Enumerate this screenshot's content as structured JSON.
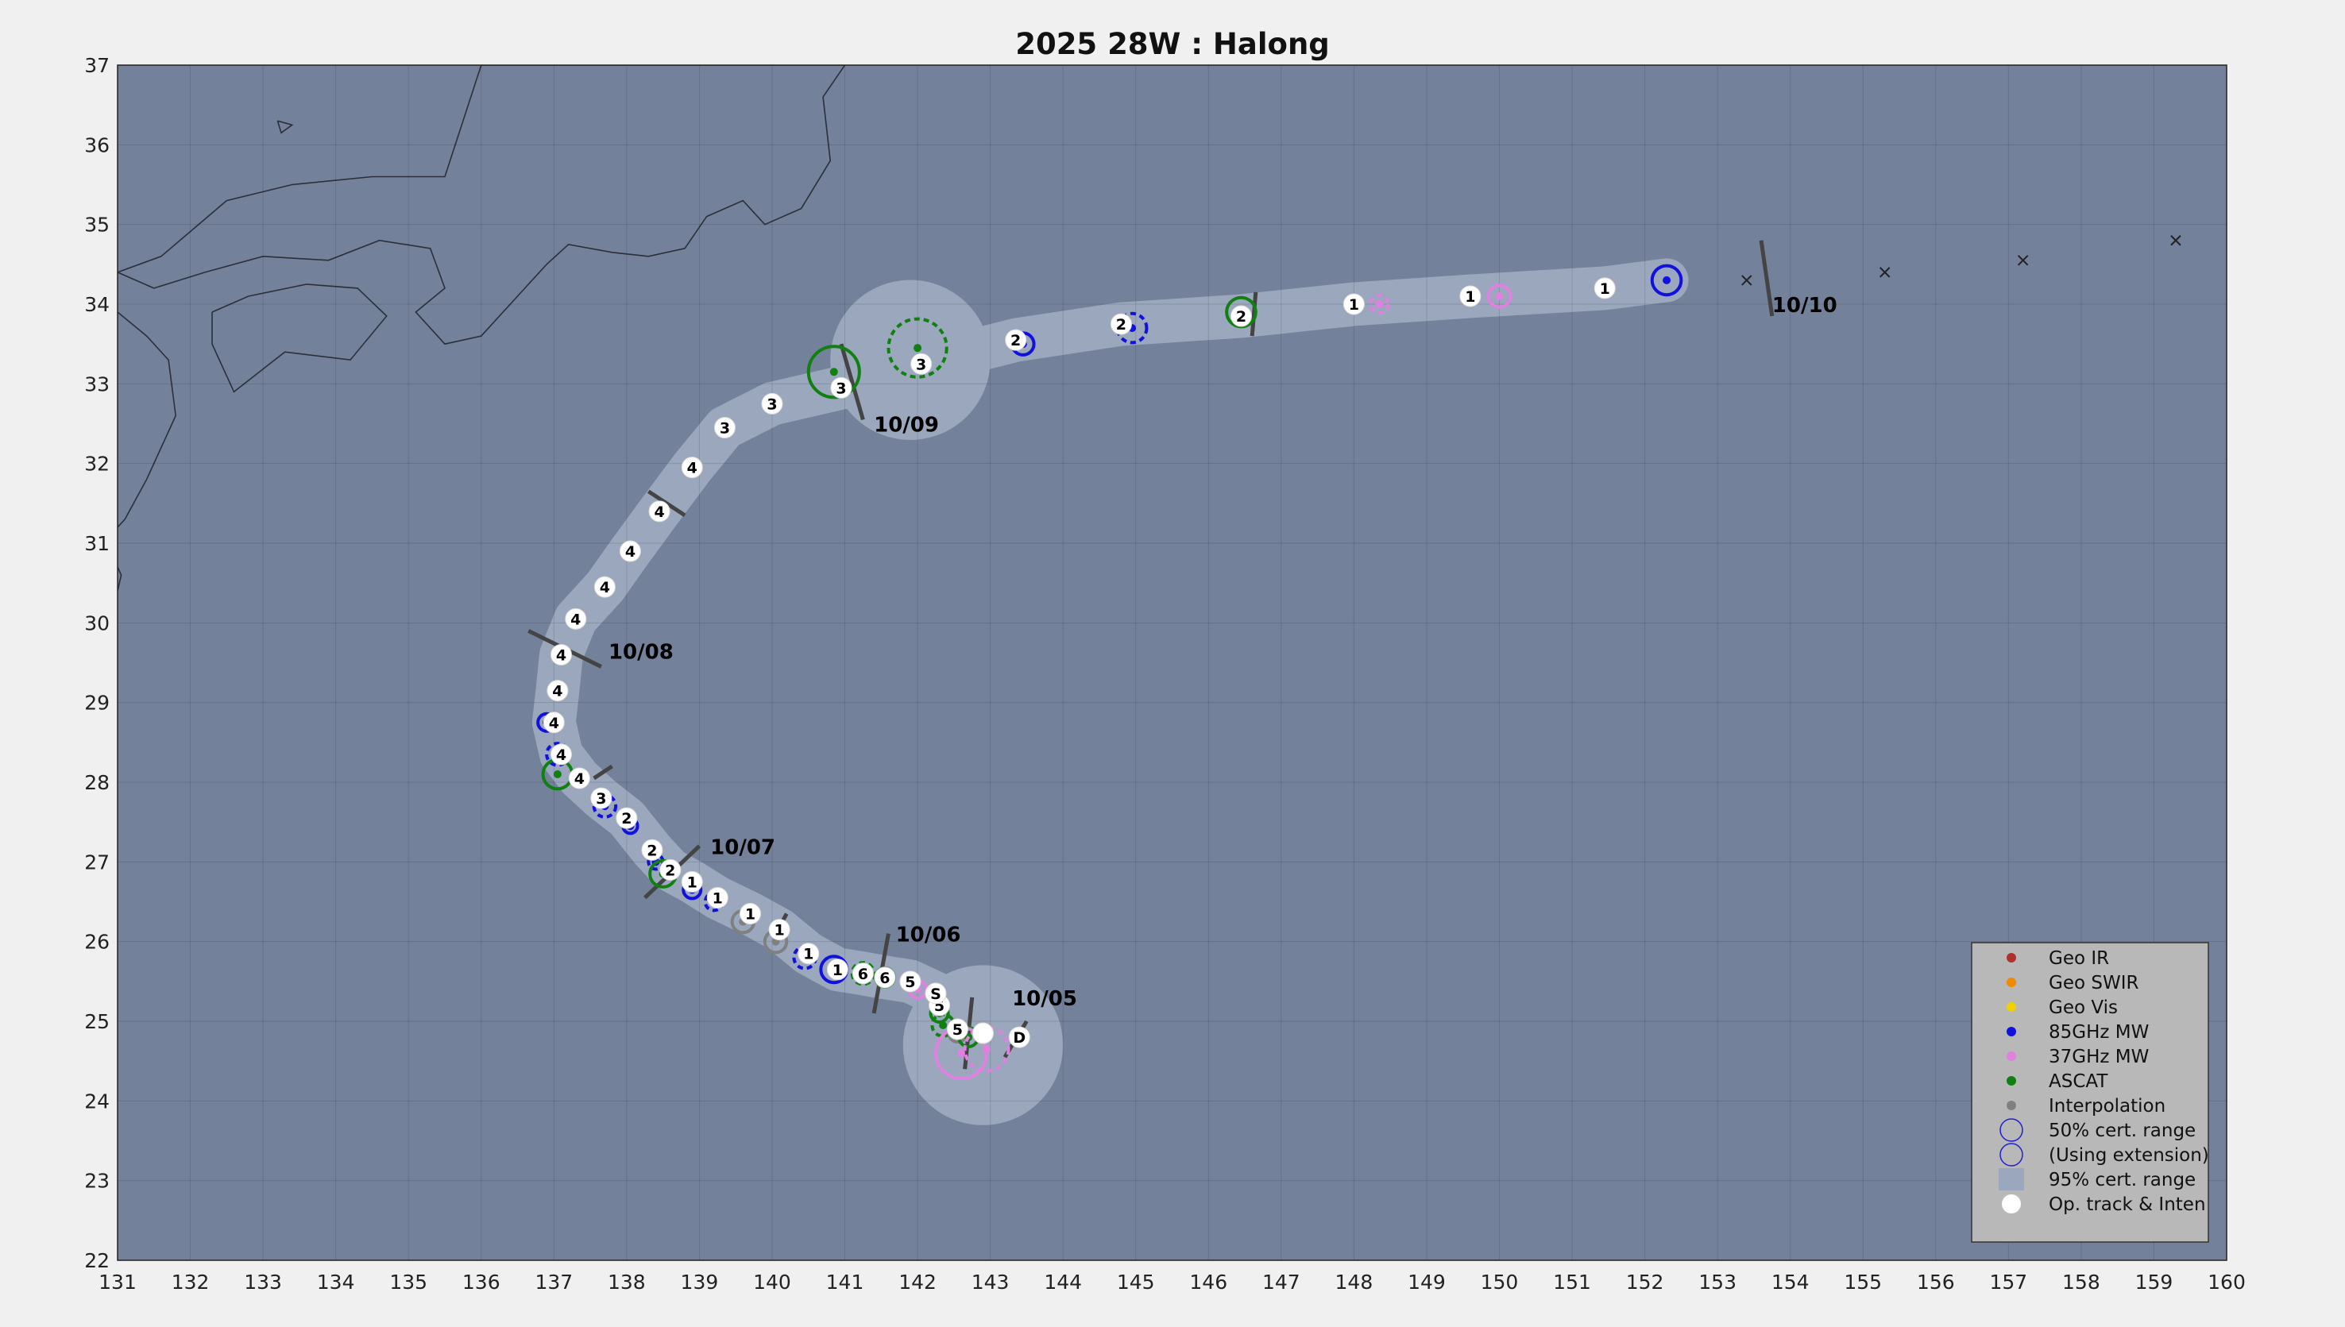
{
  "title": "2025  28W :  Halong",
  "map": {
    "lon_range": [
      131,
      160
    ],
    "lat_range": [
      22,
      37
    ],
    "lon_ticks": [
      131,
      132,
      133,
      134,
      135,
      136,
      137,
      138,
      139,
      140,
      141,
      142,
      143,
      144,
      145,
      146,
      147,
      148,
      149,
      150,
      151,
      152,
      153,
      154,
      155,
      156,
      157,
      158,
      159,
      160
    ],
    "lat_ticks": [
      22,
      23,
      24,
      25,
      26,
      27,
      28,
      29,
      30,
      31,
      32,
      33,
      34,
      35,
      36,
      37
    ],
    "grid": true,
    "colors": {
      "ocean": "#74819a",
      "cone": "#9aa7bc",
      "coast": "#2a2f3a",
      "geo_ir": "#b03030",
      "geo_swir": "#f08a00",
      "geo_vis": "#f0d000",
      "mw85": "#1010e0",
      "mw37": "#e080e0",
      "ascat": "#108010",
      "interp": "#808080",
      "track": "#ffffff"
    }
  },
  "track": [
    {
      "lon": 143.4,
      "lat": 24.8,
      "label": "D"
    },
    {
      "lon": 142.9,
      "lat": 24.85,
      "label": ""
    },
    {
      "lon": 142.55,
      "lat": 24.9,
      "label": "5"
    },
    {
      "lon": 142.3,
      "lat": 25.2,
      "label": "5"
    },
    {
      "lon": 142.25,
      "lat": 25.35,
      "label": "S"
    },
    {
      "lon": 141.9,
      "lat": 25.5,
      "label": "5"
    },
    {
      "lon": 141.55,
      "lat": 25.55,
      "label": "6"
    },
    {
      "lon": 141.25,
      "lat": 25.6,
      "label": "6"
    },
    {
      "lon": 140.9,
      "lat": 25.65,
      "label": "1"
    },
    {
      "lon": 140.5,
      "lat": 25.85,
      "label": "1"
    },
    {
      "lon": 140.1,
      "lat": 26.15,
      "label": "1"
    },
    {
      "lon": 139.7,
      "lat": 26.35,
      "label": "1"
    },
    {
      "lon": 139.25,
      "lat": 26.55,
      "label": "1"
    },
    {
      "lon": 138.9,
      "lat": 26.75,
      "label": "1"
    },
    {
      "lon": 138.6,
      "lat": 26.9,
      "label": "2"
    },
    {
      "lon": 138.35,
      "lat": 27.15,
      "label": "2"
    },
    {
      "lon": 138.0,
      "lat": 27.55,
      "label": "2"
    },
    {
      "lon": 137.65,
      "lat": 27.8,
      "label": "3"
    },
    {
      "lon": 137.35,
      "lat": 28.05,
      "label": "4"
    },
    {
      "lon": 137.1,
      "lat": 28.35,
      "label": "4"
    },
    {
      "lon": 137.0,
      "lat": 28.75,
      "label": "4"
    },
    {
      "lon": 137.05,
      "lat": 29.15,
      "label": "4"
    },
    {
      "lon": 137.1,
      "lat": 29.6,
      "label": "4"
    },
    {
      "lon": 137.3,
      "lat": 30.05,
      "label": "4"
    },
    {
      "lon": 137.7,
      "lat": 30.45,
      "label": "4"
    },
    {
      "lon": 138.05,
      "lat": 30.9,
      "label": "4"
    },
    {
      "lon": 138.45,
      "lat": 31.4,
      "label": "4"
    },
    {
      "lon": 138.9,
      "lat": 31.95,
      "label": "4"
    },
    {
      "lon": 139.35,
      "lat": 32.45,
      "label": "3"
    },
    {
      "lon": 140.0,
      "lat": 32.75,
      "label": "3"
    },
    {
      "lon": 140.95,
      "lat": 32.95,
      "label": "3"
    },
    {
      "lon": 142.05,
      "lat": 33.25,
      "label": "3"
    },
    {
      "lon": 143.35,
      "lat": 33.55,
      "label": "2"
    },
    {
      "lon": 144.8,
      "lat": 33.75,
      "label": "2"
    },
    {
      "lon": 146.45,
      "lat": 33.85,
      "label": "2"
    },
    {
      "lon": 148.0,
      "lat": 34.0,
      "label": "1"
    },
    {
      "lon": 149.6,
      "lat": 34.1,
      "label": "1"
    },
    {
      "lon": 151.45,
      "lat": 34.2,
      "label": "1"
    }
  ],
  "forecast_x": [
    {
      "lon": 153.4,
      "lat": 34.3
    },
    {
      "lon": 155.3,
      "lat": 34.4
    },
    {
      "lon": 157.2,
      "lat": 34.55
    },
    {
      "lon": 159.3,
      "lat": 34.8
    }
  ],
  "fixes": [
    {
      "type": "mw85",
      "lon": 152.3,
      "lat": 34.3,
      "r": 0.2,
      "dashed": false
    },
    {
      "type": "mw37",
      "lon": 150.0,
      "lat": 34.1,
      "r": 0.15,
      "dashed": false
    },
    {
      "type": "mw37",
      "lon": 148.35,
      "lat": 34.0,
      "r": 0.12,
      "dashed": true
    },
    {
      "type": "ascat",
      "lon": 146.45,
      "lat": 33.9,
      "r": 0.2,
      "dashed": false
    },
    {
      "type": "mw85",
      "lon": 144.95,
      "lat": 33.7,
      "r": 0.2,
      "dashed": true
    },
    {
      "type": "mw85",
      "lon": 143.45,
      "lat": 33.5,
      "r": 0.15,
      "dashed": false
    },
    {
      "type": "ascat",
      "lon": 142.0,
      "lat": 33.45,
      "r": 0.4,
      "dashed": true
    },
    {
      "type": "ascat",
      "lon": 140.85,
      "lat": 33.15,
      "r": 0.35,
      "dashed": false
    },
    {
      "type": "mw85",
      "lon": 136.9,
      "lat": 28.75,
      "r": 0.12,
      "dashed": false
    },
    {
      "type": "mw85",
      "lon": 137.05,
      "lat": 28.35,
      "r": 0.15,
      "dashed": true
    },
    {
      "type": "ascat",
      "lon": 137.05,
      "lat": 28.1,
      "r": 0.2,
      "dashed": false
    },
    {
      "type": "mw85",
      "lon": 137.7,
      "lat": 27.7,
      "r": 0.15,
      "dashed": true
    },
    {
      "type": "mw85",
      "lon": 138.05,
      "lat": 27.45,
      "r": 0.1,
      "dashed": false
    },
    {
      "type": "mw85",
      "lon": 138.4,
      "lat": 27.0,
      "r": 0.1,
      "dashed": true
    },
    {
      "type": "ascat",
      "lon": 138.5,
      "lat": 26.85,
      "r": 0.18,
      "dashed": false
    },
    {
      "type": "mw85",
      "lon": 138.9,
      "lat": 26.65,
      "r": 0.12,
      "dashed": false
    },
    {
      "type": "mw85",
      "lon": 139.2,
      "lat": 26.5,
      "r": 0.12,
      "dashed": true
    },
    {
      "type": "interp",
      "lon": 139.6,
      "lat": 26.25,
      "r": 0.15,
      "dashed": false
    },
    {
      "type": "interp",
      "lon": 140.05,
      "lat": 26.0,
      "r": 0.15,
      "dashed": false
    },
    {
      "type": "mw85",
      "lon": 140.45,
      "lat": 25.8,
      "r": 0.15,
      "dashed": true
    },
    {
      "type": "mw85",
      "lon": 140.85,
      "lat": 25.65,
      "r": 0.18,
      "dashed": false
    },
    {
      "type": "ascat",
      "lon": 141.25,
      "lat": 25.6,
      "r": 0.15,
      "dashed": true
    },
    {
      "type": "ascat",
      "lon": 141.55,
      "lat": 25.55,
      "r": 0.13,
      "dashed": false
    },
    {
      "type": "mw37",
      "lon": 142.0,
      "lat": 25.4,
      "r": 0.12,
      "dashed": false
    },
    {
      "type": "ascat",
      "lon": 142.3,
      "lat": 25.1,
      "r": 0.12,
      "dashed": false
    },
    {
      "type": "ascat",
      "lon": 142.35,
      "lat": 24.95,
      "r": 0.15,
      "dashed": true
    },
    {
      "type": "interp",
      "lon": 142.55,
      "lat": 24.85,
      "r": 0.12,
      "dashed": false
    },
    {
      "type": "ascat",
      "lon": 142.7,
      "lat": 24.8,
      "r": 0.13,
      "dashed": false
    },
    {
      "type": "mw37",
      "lon": 142.6,
      "lat": 24.6,
      "r": 0.35,
      "dashed": false
    },
    {
      "type": "mw37",
      "lon": 142.95,
      "lat": 24.65,
      "r": 0.3,
      "dashed": true
    }
  ],
  "dates": [
    {
      "text": "10/05",
      "lon": 143.3,
      "lat": 25.2
    },
    {
      "text": "10/06",
      "lon": 141.7,
      "lat": 26.0
    },
    {
      "text": "10/07",
      "lon": 139.15,
      "lat": 27.1
    },
    {
      "text": "10/08",
      "lon": 137.75,
      "lat": 29.55
    },
    {
      "text": "10/09",
      "lon": 141.4,
      "lat": 32.4
    },
    {
      "text": "10/10",
      "lon": 153.75,
      "lat": 33.9
    }
  ],
  "date_ticks": [
    {
      "lon1": 142.75,
      "lat1": 25.3,
      "lon2": 142.65,
      "lat2": 24.4
    },
    {
      "lon1": 141.6,
      "lat1": 26.1,
      "lon2": 141.4,
      "lat2": 25.1
    },
    {
      "lon1": 139.0,
      "lat1": 27.2,
      "lon2": 138.25,
      "lat2": 26.55
    },
    {
      "lon1": 136.65,
      "lat1": 29.9,
      "lon2": 137.65,
      "lat2": 29.45
    },
    {
      "lon1": 140.95,
      "lat1": 33.5,
      "lon2": 141.25,
      "lat2": 32.55
    },
    {
      "lon1": 153.6,
      "lat1": 34.8,
      "lon2": 153.75,
      "lat2": 33.85
    },
    {
      "lon1": 146.65,
      "lat1": 34.15,
      "lon2": 146.6,
      "lat2": 33.6
    },
    {
      "lon1": 138.3,
      "lat1": 31.65,
      "lon2": 138.8,
      "lat2": 31.35
    },
    {
      "lon1": 137.8,
      "lat1": 28.2,
      "lon2": 137.55,
      "lat2": 28.05
    },
    {
      "lon1": 143.5,
      "lat1": 25.0,
      "lon2": 143.2,
      "lat2": 24.55
    },
    {
      "lon1": 140.2,
      "lat1": 26.35,
      "lon2": 140.05,
      "lat2": 26.1
    }
  ],
  "legend": {
    "items": [
      {
        "key": "geo_ir",
        "label": "Geo IR",
        "style": "dot"
      },
      {
        "key": "geo_swir",
        "label": "Geo SWIR",
        "style": "dot"
      },
      {
        "key": "geo_vis",
        "label": "Geo Vis",
        "style": "dot"
      },
      {
        "key": "mw85",
        "label": "85GHz MW",
        "style": "dot"
      },
      {
        "key": "mw37",
        "label": "37GHz MW",
        "style": "dot"
      },
      {
        "key": "ascat",
        "label": "ASCAT",
        "style": "dot"
      },
      {
        "key": "interp",
        "label": "Interpolation",
        "style": "dot"
      },
      {
        "key": "cert50",
        "label": "50% cert. range",
        "style": "circle"
      },
      {
        "key": "cert50ext",
        "label": "(Using extension)",
        "style": "circle"
      },
      {
        "key": "cert95",
        "label": "95% cert. range",
        "style": "rect"
      },
      {
        "key": "optrack",
        "label": "Op. track & Inten",
        "style": "white"
      }
    ]
  }
}
